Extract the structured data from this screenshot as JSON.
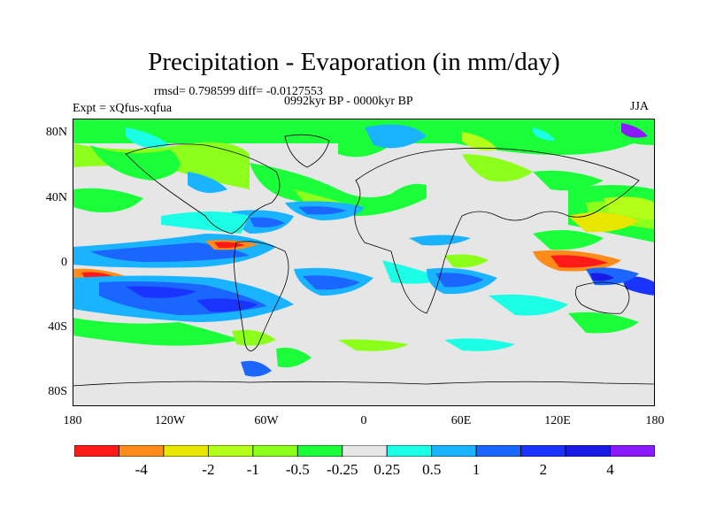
{
  "title": "Precipitation - Evaporation (in mm/day)",
  "stats": "rmsd= 0.798599 diff= -0.0127553",
  "period": "0992kyr BP - 0000kyr BP",
  "experiment": "Expt = xQfus-xqfua",
  "season": "JJA",
  "lat_labels": [
    "80N",
    "40N",
    "0",
    "40S",
    "80S"
  ],
  "lon_labels": [
    "180",
    "120W",
    "60W",
    "0",
    "60E",
    "120E",
    "180"
  ],
  "colorbar": {
    "colors": [
      "#ff1a1a",
      "#ff8c1a",
      "#e6e600",
      "#b3ff1a",
      "#8cff1a",
      "#1aff3a",
      "#e6e6e6",
      "#1affe6",
      "#1ab3ff",
      "#1a66ff",
      "#1a33ff",
      "#1a1ae6",
      "#8c1aff"
    ],
    "labels": [
      "-4",
      "-2",
      "-1",
      "-0.5",
      "-0.25",
      "0.25",
      "0.5",
      "1",
      "2",
      "4"
    ]
  }
}
